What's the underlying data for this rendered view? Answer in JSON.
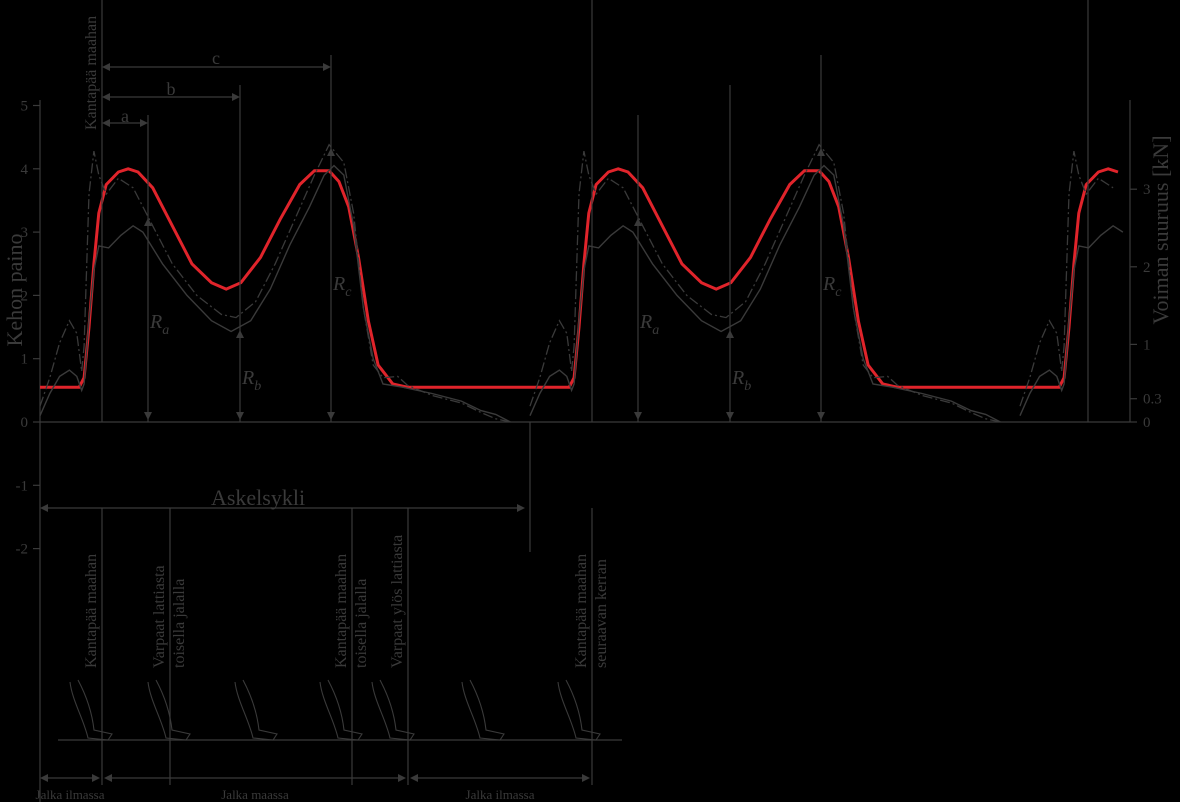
{
  "colors": {
    "background": "#000000",
    "ink": "#3a3a3a",
    "highlight": "#e0242b"
  },
  "chart_data": {
    "type": "line",
    "ylabel_left": "Kehon paino",
    "ylabel_right": "Voiman suuruus [kN]",
    "left_ticks": [
      "5",
      "4",
      "3",
      "2",
      "1",
      "0",
      "-1",
      "-2"
    ],
    "right_ticks": [
      "3",
      "2",
      "1",
      "0.3",
      "0"
    ],
    "ylim_left": [
      -2,
      5
    ],
    "ylim_right": [
      0,
      3.35
    ],
    "grid": false,
    "legend": "none",
    "peak_labels": [
      {
        "main": "R",
        "sub": "a"
      },
      {
        "main": "R",
        "sub": "b"
      },
      {
        "main": "R",
        "sub": "c"
      },
      {
        "main": "R",
        "sub": "a"
      },
      {
        "main": "R",
        "sub": "b"
      },
      {
        "main": "R",
        "sub": "c"
      }
    ],
    "intervals": [
      "a",
      "b",
      "c"
    ],
    "top_event": "Kantapää maahan",
    "cycle_label": "Askelsykli",
    "events": [
      [
        "Kantapää maahan"
      ],
      [
        "Varpaat lattiasta",
        "toisella jalalla"
      ],
      [
        "Kantapää maahan",
        "toisella jalalla"
      ],
      [
        "Varpaat ylös lattiasta"
      ],
      [
        "Kantapää maahan",
        "seuraavan kerran"
      ]
    ],
    "phases": [
      "Jalka ilmassa",
      "Jalka maassa",
      "Jalka ilmassa"
    ],
    "series": [
      {
        "style": "thick-red",
        "points": [
          [
            0,
            0.55
          ],
          [
            0.08,
            0.55
          ],
          [
            0.09,
            0.7
          ],
          [
            0.1,
            1.5
          ],
          [
            0.11,
            2.5
          ],
          [
            0.12,
            3.3
          ],
          [
            0.135,
            3.75
          ],
          [
            0.16,
            3.95
          ],
          [
            0.18,
            4.0
          ],
          [
            0.2,
            3.95
          ],
          [
            0.23,
            3.7
          ],
          [
            0.27,
            3.1
          ],
          [
            0.31,
            2.5
          ],
          [
            0.35,
            2.2
          ],
          [
            0.38,
            2.1
          ],
          [
            0.41,
            2.2
          ],
          [
            0.45,
            2.6
          ],
          [
            0.49,
            3.2
          ],
          [
            0.53,
            3.75
          ],
          [
            0.56,
            3.97
          ],
          [
            0.59,
            3.97
          ],
          [
            0.61,
            3.8
          ],
          [
            0.63,
            3.4
          ],
          [
            0.65,
            2.6
          ],
          [
            0.67,
            1.6
          ],
          [
            0.69,
            0.9
          ],
          [
            0.72,
            0.6
          ],
          [
            0.75,
            0.55
          ],
          [
            1.0,
            0.55
          ]
        ]
      },
      {
        "style": "thin-solid",
        "points": [
          [
            0,
            0.1
          ],
          [
            0.02,
            0.45
          ],
          [
            0.04,
            0.72
          ],
          [
            0.06,
            0.82
          ],
          [
            0.075,
            0.72
          ],
          [
            0.085,
            0.5
          ],
          [
            0.09,
            0.6
          ],
          [
            0.1,
            1.6
          ],
          [
            0.11,
            2.4
          ],
          [
            0.12,
            2.78
          ],
          [
            0.14,
            2.75
          ],
          [
            0.165,
            2.95
          ],
          [
            0.19,
            3.1
          ],
          [
            0.21,
            3.0
          ],
          [
            0.25,
            2.5
          ],
          [
            0.3,
            2.0
          ],
          [
            0.35,
            1.6
          ],
          [
            0.39,
            1.43
          ],
          [
            0.43,
            1.6
          ],
          [
            0.47,
            2.1
          ],
          [
            0.51,
            2.8
          ],
          [
            0.55,
            3.4
          ],
          [
            0.58,
            3.9
          ],
          [
            0.6,
            4.05
          ],
          [
            0.62,
            3.9
          ],
          [
            0.64,
            3.1
          ],
          [
            0.66,
            1.8
          ],
          [
            0.68,
            1.0
          ],
          [
            0.7,
            0.6
          ],
          [
            0.74,
            0.55
          ],
          [
            0.8,
            0.45
          ],
          [
            0.86,
            0.33
          ],
          [
            0.9,
            0.18
          ],
          [
            0.93,
            0.12
          ],
          [
            0.96,
            0.0
          ]
        ]
      },
      {
        "style": "dash-dot",
        "points": [
          [
            0,
            0.25
          ],
          [
            0.02,
            0.7
          ],
          [
            0.04,
            1.25
          ],
          [
            0.06,
            1.6
          ],
          [
            0.075,
            1.4
          ],
          [
            0.085,
            0.8
          ],
          [
            0.09,
            1.2
          ],
          [
            0.1,
            3.6
          ],
          [
            0.11,
            4.28
          ],
          [
            0.12,
            3.9
          ],
          [
            0.135,
            3.6
          ],
          [
            0.16,
            3.85
          ],
          [
            0.19,
            3.7
          ],
          [
            0.23,
            3.1
          ],
          [
            0.27,
            2.5
          ],
          [
            0.32,
            2.0
          ],
          [
            0.37,
            1.7
          ],
          [
            0.4,
            1.65
          ],
          [
            0.44,
            1.9
          ],
          [
            0.48,
            2.5
          ],
          [
            0.52,
            3.2
          ],
          [
            0.56,
            3.9
          ],
          [
            0.59,
            4.38
          ],
          [
            0.62,
            4.1
          ],
          [
            0.64,
            3.3
          ],
          [
            0.66,
            1.8
          ],
          [
            0.68,
            0.9
          ],
          [
            0.7,
            0.7
          ],
          [
            0.73,
            0.72
          ],
          [
            0.75,
            0.58
          ],
          [
            0.8,
            0.42
          ],
          [
            0.86,
            0.3
          ],
          [
            0.9,
            0.15
          ],
          [
            0.93,
            0.05
          ],
          [
            0.96,
            0.0
          ]
        ]
      }
    ]
  }
}
